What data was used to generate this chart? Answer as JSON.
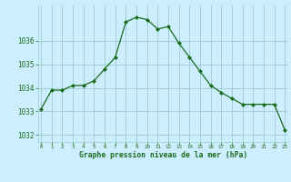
{
  "x": [
    0,
    1,
    2,
    3,
    4,
    5,
    6,
    7,
    8,
    9,
    10,
    11,
    12,
    13,
    14,
    15,
    16,
    17,
    18,
    19,
    20,
    21,
    22,
    23
  ],
  "y": [
    1033.1,
    1033.9,
    1033.9,
    1034.1,
    1034.1,
    1034.3,
    1034.8,
    1035.3,
    1036.8,
    1037.0,
    1036.9,
    1036.5,
    1036.6,
    1035.9,
    1035.3,
    1034.7,
    1034.1,
    1033.8,
    1033.55,
    1033.3,
    1033.3,
    1033.3,
    1033.3,
    1032.2
  ],
  "line_color": "#1a6b1a",
  "marker": "D",
  "marker_size": 2.0,
  "bg_color": "#cceeff",
  "grid_color": "#99cccc",
  "xlabel": "Graphe pression niveau de la mer (hPa)",
  "xlabel_color": "#1a6b1a",
  "tick_color": "#1a6b1a",
  "ylim": [
    1031.7,
    1037.5
  ],
  "yticks": [
    1032,
    1033,
    1034,
    1035,
    1036
  ],
  "xticks": [
    0,
    1,
    2,
    3,
    4,
    5,
    6,
    7,
    8,
    9,
    10,
    11,
    12,
    13,
    14,
    15,
    16,
    17,
    18,
    19,
    20,
    21,
    22,
    23
  ],
  "xlim": [
    -0.3,
    23.3
  ]
}
